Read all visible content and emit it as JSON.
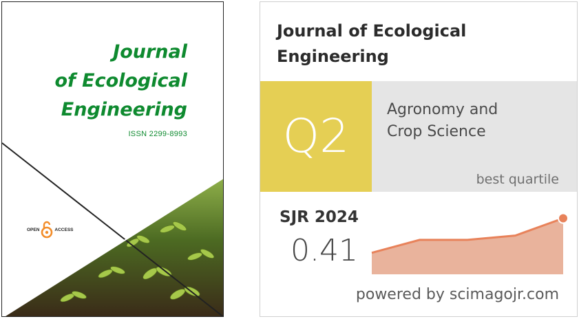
{
  "cover": {
    "title_line1": "Journal",
    "title_line2": "of Ecological",
    "title_line3": "Engineering",
    "issn": "ISSN 2299-8993",
    "open_access_left": "OPEN",
    "open_access_right": "ACCESS",
    "green": "#0e8a2f",
    "oa_orange": "#f28c28"
  },
  "widget": {
    "title_line1": "Journal of Ecological",
    "title_line2": "Engineering",
    "quartile": "Q2",
    "category_line1": "Agronomy and",
    "category_line2": "Crop Science",
    "best_quartile_label": "best quartile",
    "sjr_label": "SJR 2024",
    "sjr_value": "0.41",
    "powered_by": "powered by scimagojr.com",
    "quartile_color": "#e5cf54",
    "trend_color": "#e8825a",
    "trend_fill": "#e9b39c"
  },
  "chart_data": {
    "type": "area",
    "values": [
      0.33,
      0.36,
      0.36,
      0.37,
      0.41
    ],
    "ylim": [
      0.28,
      0.43
    ]
  }
}
